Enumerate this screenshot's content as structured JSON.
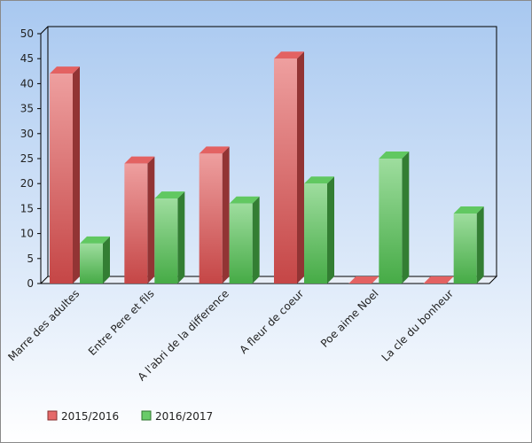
{
  "chart_data": {
    "type": "bar",
    "style": "3d",
    "categories": [
      "Marre des adultes",
      "Entre Pere et fils",
      "A l'abri de la difference",
      "A fleur de coeur",
      "Poe aime Noel",
      "La cle du bonheur"
    ],
    "series": [
      {
        "name": "2015/2016",
        "color": "#e05050",
        "values": [
          42,
          24,
          26,
          45,
          0,
          0
        ]
      },
      {
        "name": "2016/2017",
        "color": "#4fc24f",
        "values": [
          8,
          17,
          16,
          20,
          25,
          14
        ]
      }
    ],
    "ylim": [
      0,
      50
    ],
    "yticks": [
      0,
      5,
      10,
      15,
      20,
      25,
      30,
      35,
      40,
      45,
      50
    ],
    "legend_position": "bottom-left",
    "grid": false,
    "background_gradient": [
      "#a8c8f0",
      "#ffffff"
    ]
  }
}
